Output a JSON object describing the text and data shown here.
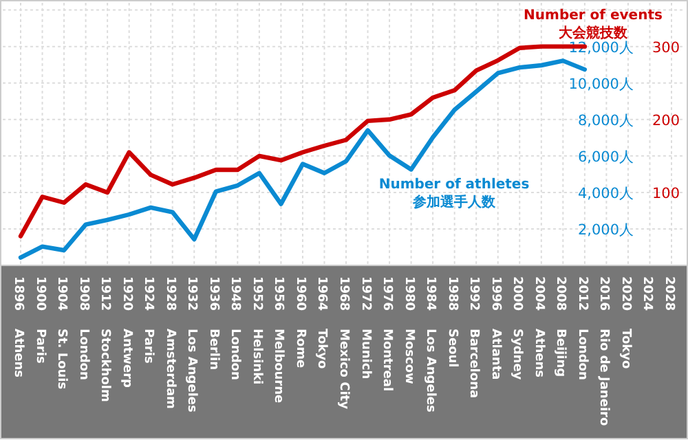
{
  "chart_data": {
    "type": "line",
    "categories": [
      "1896 Athens",
      "1900 Paris",
      "1904 St. Louis",
      "1908 London",
      "1912 Stockholm",
      "1920 Antwerp",
      "1924 Paris",
      "1928 Amsterdam",
      "1932 Los Angeles",
      "1936 Berlin",
      "1948 London",
      "1952 Helsinki",
      "1956 Melbourne",
      "1960 Rome",
      "1964 Tokyo",
      "1968 Mexico City",
      "1972 Munich",
      "1976 Montreal",
      "1980 Moscow",
      "1984 Los Angeles",
      "1988 Seoul",
      "1992 Barcelona",
      "1996 Atlanta",
      "2000 Sydney",
      "2004 Athens",
      "2008 Beijing",
      "2012 London",
      "2016 Rio de Janeiro",
      "2020 Tokyo",
      "2024",
      "2028"
    ],
    "series": [
      {
        "name": "Number of athletes\n参加選手人数",
        "color": "#0a8ad2",
        "values": [
          430,
          1030,
          830,
          2240,
          2490,
          2790,
          3170,
          2920,
          1430,
          4050,
          4380,
          5060,
          3370,
          5560,
          5060,
          5710,
          7400,
          6020,
          5260,
          7020,
          8530,
          9530,
          10540,
          10850,
          10970,
          11220,
          10740,
          null,
          null,
          null,
          null
        ]
      },
      {
        "name": "Number of events\n大会競技数",
        "color": "#cc0000",
        "axis": "y2",
        "values": [
          40,
          94,
          86,
          111,
          100,
          155,
          124,
          111,
          120,
          131,
          131,
          150,
          144,
          155,
          164,
          172,
          198,
          200,
          207,
          230,
          240,
          267,
          281,
          298,
          300,
          300,
          300,
          null,
          null,
          null,
          null
        ]
      }
    ],
    "ylim": [
      0,
      14400
    ],
    "yticks": [
      {
        "value": 2000,
        "label": "2,000人"
      },
      {
        "value": 4000,
        "label": "4,000人"
      },
      {
        "value": 6000,
        "label": "6,000人"
      },
      {
        "value": 8000,
        "label": "8,000人"
      },
      {
        "value": 10000,
        "label": "10,000人"
      },
      {
        "value": 12000,
        "label": "12,000人"
      },
      {
        "value": 14000,
        "label": null
      }
    ],
    "y2lim": [
      0,
      360
    ],
    "y2ticks": [
      100,
      200,
      300
    ],
    "grid": true,
    "legend": false,
    "marker": "none",
    "line_style": "solid"
  }
}
